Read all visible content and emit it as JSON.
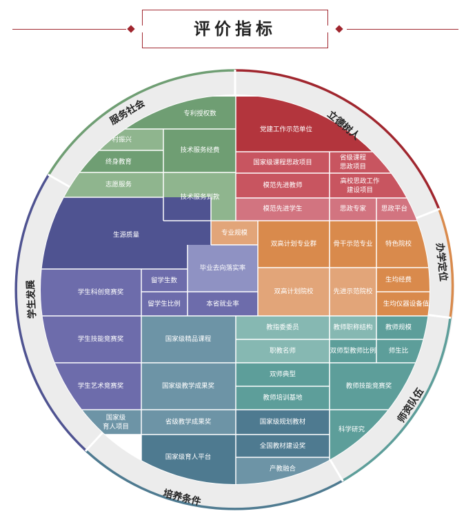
{
  "title": "评价指标",
  "colors": {
    "red": "#b3353d",
    "red_mid": "#c85560",
    "red_light": "#d27480",
    "orange": "#d98a4c",
    "orange_light": "#e2a579",
    "green": "#6f9e73",
    "green_light": "#8fb58e",
    "navy": "#4f5391",
    "purple": "#6d6cab",
    "lavender": "#8f92c3",
    "teal": "#5d9e9a",
    "teal_light": "#86b8b2",
    "blue": "#6d94a6",
    "blue_dark": "#4e7a90",
    "ring": "#ececec"
  },
  "segments": {
    "lide": "立德树人",
    "banxue": "办学定位",
    "shizi": "师资队伍",
    "peiyang": "培养条件",
    "xuesheng": "学生发展",
    "fuwu": "服务社会"
  },
  "cells": {
    "zhuanli": "专利授权数",
    "xiangcun": "乡村振兴",
    "jishu_jingfei": "技术服务经费",
    "zhongshen": "终身教育",
    "zhiyuan": "志愿服务",
    "jishu_daokuan": "技术服务到款",
    "dangjian": "党建工作示范单位",
    "guojia_sizheng": "国家级课程思政项目",
    "shengji_sizheng_1": "省级课程",
    "shengji_sizheng_2": "思政项目",
    "mofan_jiaoshi": "模范先进教师",
    "gaoxiao_sizheng_1": "高校思政工作",
    "gaoxiao_sizheng_2": "建设项目",
    "mofan_xuesheng": "模范先进学生",
    "sizheng_zhuanjia": "思政专家",
    "sizheng_pingtai": "思政平台",
    "shengyuan": "生源质量",
    "zhuanye_guimo": "专业规模",
    "shuanggao_qun": "双高计划专业群",
    "gugan": "骨干示范专业",
    "tese": "特色院校",
    "biye": "毕业去向落实率",
    "shuanggao_yuan": "双高计划院校",
    "xianjin": "先进示范院校",
    "shengjun_jingfei": "生均经费",
    "shengjun_yiqi": "生均仪器设备值",
    "kechuang": "学生科创竞赛奖",
    "liuxue_shu": "留学生数",
    "liuxue_bili": "留学生比例",
    "benxing": "本省就业率",
    "jineng_xs": "学生技能竞赛奖",
    "jingpin": "国家级精品课程",
    "jiaozhi": "教指委委员",
    "zhicheng": "教师职称结构",
    "jiaoshi_guimo": "教师规模",
    "mingshi": "职教名师",
    "shuangshi_bili": "双师型教师比例",
    "shengshibi": "师生比",
    "yishu": "学生艺术竞赛奖",
    "jiaoxue_guo": "国家级教学成果奖",
    "shuangshi_dian": "双师典型",
    "jineng_js": "教师技能竞赛奖",
    "peixun": "教师培训基地",
    "yuren_xm_1": "国家级",
    "yuren_xm_2": "育人项目",
    "jiaoxue_sheng": "省级教学成果奖",
    "guihua": "国家级规划教材",
    "keyan": "科学研究",
    "yuren_pt": "国家级育人平台",
    "jiaocai": "全国教材建设奖",
    "chanjiao": "产教融合"
  }
}
